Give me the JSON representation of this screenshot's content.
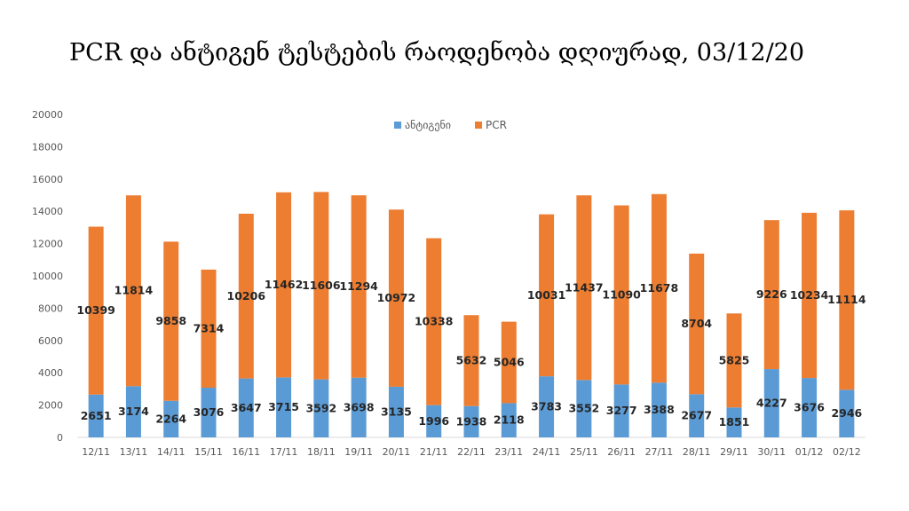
{
  "title": "PCR და ანტიგენ ტესტების რაოდენობა დღიურად, 03/12/20",
  "chart_data": {
    "type": "bar",
    "stacked": true,
    "title": "PCR და ანტიგენ ტესტების რაოდენობა დღიურად, 03/12/20",
    "xlabel": "",
    "ylabel": "",
    "ylim": [
      0,
      20000
    ],
    "yticks": [
      0,
      2000,
      4000,
      6000,
      8000,
      10000,
      12000,
      14000,
      16000,
      18000,
      20000
    ],
    "grid": false,
    "legend": "top-center",
    "categories": [
      "12/11",
      "13/11",
      "14/11",
      "15/11",
      "16/11",
      "17/11",
      "18/11",
      "19/11",
      "20/11",
      "21/11",
      "22/11",
      "23/11",
      "24/11",
      "25/11",
      "26/11",
      "27/11",
      "28/11",
      "29/11",
      "30/11",
      "01/12",
      "02/12"
    ],
    "series": [
      {
        "name": "ანტიგენი",
        "color": "#5B9BD5",
        "values": [
          2651,
          3174,
          2264,
          3076,
          3647,
          3715,
          3592,
          3698,
          3135,
          1996,
          1938,
          2118,
          3783,
          3552,
          3277,
          3388,
          2677,
          1851,
          4227,
          3676,
          2946
        ]
      },
      {
        "name": "PCR",
        "color": "#ED7D31",
        "values": [
          10399,
          11814,
          9858,
          7314,
          10206,
          11462,
          11606,
          11294,
          10972,
          10338,
          5632,
          5046,
          10031,
          11437,
          11090,
          11678,
          8704,
          5825,
          9226,
          10234,
          11114
        ]
      }
    ]
  }
}
